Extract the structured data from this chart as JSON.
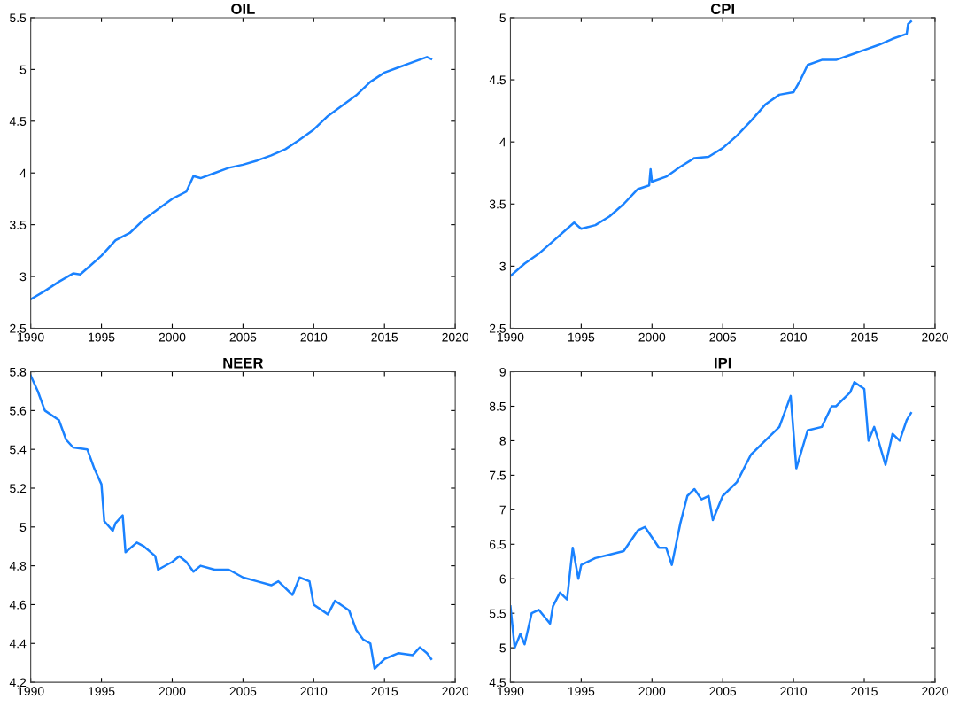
{
  "chart_data": [
    {
      "type": "line",
      "title": "OIL",
      "xlim": [
        1990,
        2020
      ],
      "xticks": [
        1990,
        1995,
        2000,
        2005,
        2010,
        2015,
        2020
      ],
      "ylim": [
        2.5,
        5.5
      ],
      "yticks": [
        2.5,
        3,
        3.5,
        4,
        4.5,
        5,
        5.5
      ],
      "grid": false,
      "legend": false,
      "x": [
        1990,
        1991,
        1992,
        1993,
        1993.5,
        1994,
        1995,
        1996,
        1997,
        1998,
        1999,
        2000,
        2001,
        2001.5,
        2002,
        2003,
        2004,
        2005,
        2006,
        2007,
        2008,
        2009,
        2010,
        2011,
        2012,
        2013,
        2014,
        2015,
        2016,
        2017,
        2018,
        2018.3
      ],
      "series": [
        {
          "color": "#1a82ff",
          "values": [
            2.78,
            2.86,
            2.95,
            3.03,
            3.02,
            3.08,
            3.2,
            3.35,
            3.42,
            3.55,
            3.65,
            3.75,
            3.82,
            3.97,
            3.95,
            4.0,
            4.05,
            4.08,
            4.12,
            4.17,
            4.23,
            4.32,
            4.42,
            4.55,
            4.65,
            4.75,
            4.88,
            4.97,
            5.02,
            5.07,
            5.12,
            5.1
          ]
        }
      ]
    },
    {
      "type": "line",
      "title": "CPI",
      "xlim": [
        1990,
        2020
      ],
      "xticks": [
        1990,
        1995,
        2000,
        2005,
        2010,
        2015,
        2020
      ],
      "ylim": [
        2.5,
        5
      ],
      "yticks": [
        2.5,
        3,
        3.5,
        4,
        4.5,
        5
      ],
      "grid": false,
      "legend": false,
      "x": [
        1990,
        1991,
        1992,
        1993,
        1994,
        1994.5,
        1995,
        1996,
        1997,
        1998,
        1999,
        1999.8,
        1999.9,
        2000,
        2001,
        2002,
        2003,
        2004,
        2005,
        2006,
        2007,
        2008,
        2009,
        2010,
        2010.5,
        2011,
        2012,
        2013,
        2014,
        2015,
        2016,
        2017,
        2018,
        2018.1,
        2018.3
      ],
      "series": [
        {
          "color": "#1a82ff",
          "values": [
            2.92,
            3.02,
            3.1,
            3.2,
            3.3,
            3.35,
            3.3,
            3.33,
            3.4,
            3.5,
            3.62,
            3.65,
            3.78,
            3.68,
            3.72,
            3.8,
            3.87,
            3.88,
            3.95,
            4.05,
            4.17,
            4.3,
            4.38,
            4.4,
            4.5,
            4.62,
            4.66,
            4.66,
            4.7,
            4.74,
            4.78,
            4.83,
            4.87,
            4.95,
            4.97
          ]
        }
      ]
    },
    {
      "type": "line",
      "title": "NEER",
      "xlim": [
        1990,
        2020
      ],
      "xticks": [
        1990,
        1995,
        2000,
        2005,
        2010,
        2015,
        2020
      ],
      "ylim": [
        4.2,
        5.8
      ],
      "yticks": [
        4.2,
        4.4,
        4.6,
        4.8,
        5,
        5.2,
        5.4,
        5.6,
        5.8
      ],
      "grid": false,
      "legend": false,
      "x": [
        1990,
        1990.5,
        1991,
        1992,
        1992.5,
        1993,
        1994,
        1994.5,
        1995,
        1995.2,
        1995.8,
        1996,
        1996.5,
        1996.7,
        1997.5,
        1998,
        1998.8,
        1999,
        2000,
        2000.5,
        2001,
        2001.5,
        2002,
        2003,
        2004,
        2005,
        2006,
        2007,
        2007.5,
        2008.5,
        2009,
        2009.7,
        2010,
        2011,
        2011.5,
        2012.5,
        2013,
        2013.5,
        2014,
        2014.3,
        2015,
        2016,
        2017,
        2017.5,
        2018,
        2018.3
      ],
      "series": [
        {
          "color": "#1a82ff",
          "values": [
            5.78,
            5.7,
            5.6,
            5.55,
            5.45,
            5.41,
            5.4,
            5.3,
            5.22,
            5.03,
            4.98,
            5.02,
            5.06,
            4.87,
            4.92,
            4.9,
            4.85,
            4.78,
            4.82,
            4.85,
            4.82,
            4.77,
            4.8,
            4.78,
            4.78,
            4.74,
            4.72,
            4.7,
            4.72,
            4.65,
            4.74,
            4.72,
            4.6,
            4.55,
            4.62,
            4.57,
            4.47,
            4.42,
            4.4,
            4.27,
            4.32,
            4.35,
            4.34,
            4.38,
            4.35,
            4.32
          ]
        }
      ]
    },
    {
      "type": "line",
      "title": "IPI",
      "xlim": [
        1990,
        2020
      ],
      "xticks": [
        1990,
        1995,
        2000,
        2005,
        2010,
        2015,
        2020
      ],
      "ylim": [
        4.5,
        9
      ],
      "yticks": [
        4.5,
        5,
        5.5,
        6,
        6.5,
        7,
        7.5,
        8,
        8.5,
        9
      ],
      "grid": false,
      "legend": false,
      "x": [
        1990,
        1990.3,
        1990.7,
        1991,
        1991.5,
        1992,
        1992.8,
        1993,
        1993.5,
        1994,
        1994.4,
        1994.8,
        1995,
        1996,
        1997,
        1998,
        1999,
        1999.5,
        2000,
        2000.5,
        2001,
        2001.4,
        2002,
        2002.5,
        2003,
        2003.5,
        2004,
        2004.3,
        2005,
        2006,
        2007,
        2008,
        2009,
        2009.8,
        2010.2,
        2011,
        2012,
        2012.7,
        2013,
        2014,
        2014.3,
        2015,
        2015.3,
        2015.7,
        2016,
        2016.5,
        2017,
        2017.5,
        2018,
        2018.3
      ],
      "series": [
        {
          "color": "#1a82ff",
          "values": [
            5.6,
            5.0,
            5.2,
            5.05,
            5.5,
            5.55,
            5.35,
            5.6,
            5.8,
            5.7,
            6.45,
            6.0,
            6.2,
            6.3,
            6.35,
            6.4,
            6.7,
            6.75,
            6.6,
            6.45,
            6.45,
            6.2,
            6.8,
            7.2,
            7.3,
            7.15,
            7.2,
            6.85,
            7.2,
            7.4,
            7.8,
            8.0,
            8.2,
            8.65,
            7.6,
            8.15,
            8.2,
            8.5,
            8.5,
            8.7,
            8.85,
            8.75,
            8.0,
            8.2,
            8.0,
            7.65,
            8.1,
            8.0,
            8.3,
            8.4
          ]
        }
      ]
    }
  ]
}
